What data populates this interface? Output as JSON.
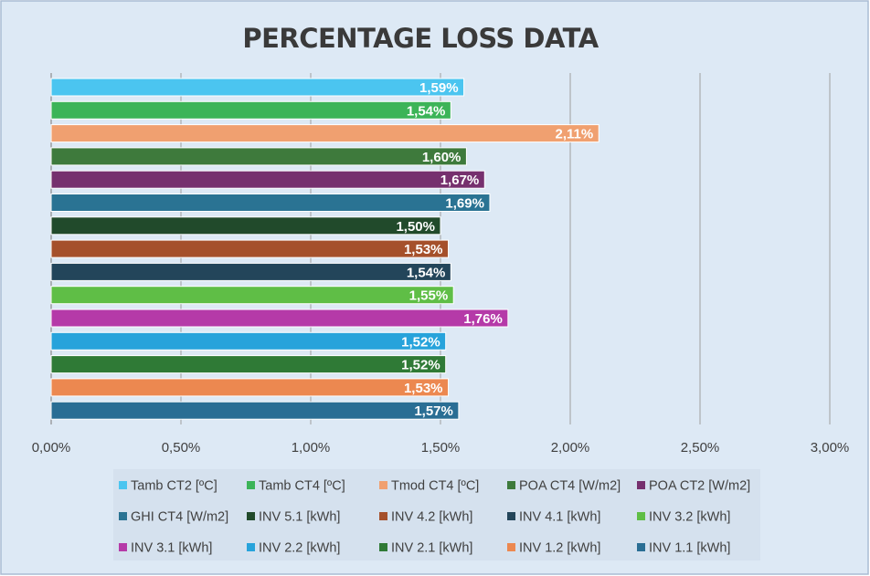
{
  "chart_data": {
    "type": "bar",
    "orientation": "horizontal",
    "title": "PERCENTAGE LOSS DATA",
    "xlabel": "",
    "ylabel": "",
    "xlim": [
      0,
      3
    ],
    "x_ticks": [
      0,
      0.5,
      1,
      1.5,
      2,
      2.5,
      3
    ],
    "x_tick_labels": [
      "0,00%",
      "0,50%",
      "1,00%",
      "1,50%",
      "2,00%",
      "2,50%",
      "3,00%"
    ],
    "grid": true,
    "legend_position": "bottom",
    "series": [
      {
        "name": "Tamb CT2 [ºC]",
        "value": 1.59,
        "label": "1,59%",
        "color": "#4bc5f0"
      },
      {
        "name": "Tamb CT4 [ºC]",
        "value": 1.54,
        "label": "1,54%",
        "color": "#3cb458"
      },
      {
        "name": "Tmod CT4 [ºC]",
        "value": 2.11,
        "label": "2,11%",
        "color": "#f0a070"
      },
      {
        "name": "POA CT4 [W/m2]",
        "value": 1.6,
        "label": "1,60%",
        "color": "#3e7a3c"
      },
      {
        "name": "POA CT2 [W/m2]",
        "value": 1.67,
        "label": "1,67%",
        "color": "#76306e"
      },
      {
        "name": "GHI CT4 [W/m2]",
        "value": 1.69,
        "label": "1,69%",
        "color": "#2a7393"
      },
      {
        "name": "INV 5.1 [kWh]",
        "value": 1.5,
        "label": "1,50%",
        "color": "#214a2b"
      },
      {
        "name": "INV 4.2 [kWh]",
        "value": 1.53,
        "label": "1,53%",
        "color": "#a5502b"
      },
      {
        "name": "INV 4.1 [kWh]",
        "value": 1.54,
        "label": "1,54%",
        "color": "#23455a"
      },
      {
        "name": "INV 3.2 [kWh]",
        "value": 1.55,
        "label": "1,55%",
        "color": "#5fbe46"
      },
      {
        "name": "INV 3.1 [kWh]",
        "value": 1.76,
        "label": "1,76%",
        "color": "#b53aa8"
      },
      {
        "name": "INV 2.2 [kWh]",
        "value": 1.52,
        "label": "1,52%",
        "color": "#27a3db"
      },
      {
        "name": "INV 2.1 [kWh]",
        "value": 1.52,
        "label": "1,52%",
        "color": "#2f7a36"
      },
      {
        "name": "INV 1.2 [kWh]",
        "value": 1.53,
        "label": "1,53%",
        "color": "#ec8850"
      },
      {
        "name": "INV 1.1 [kWh]",
        "value": 1.57,
        "label": "1,57%",
        "color": "#2a6e94"
      }
    ]
  },
  "colors": {
    "background": "#dde9f5",
    "border": "#a8bcd4",
    "grid": "#a0a0a0",
    "axis": "#8c8c8c",
    "legend_background": "#d5e1ee"
  }
}
